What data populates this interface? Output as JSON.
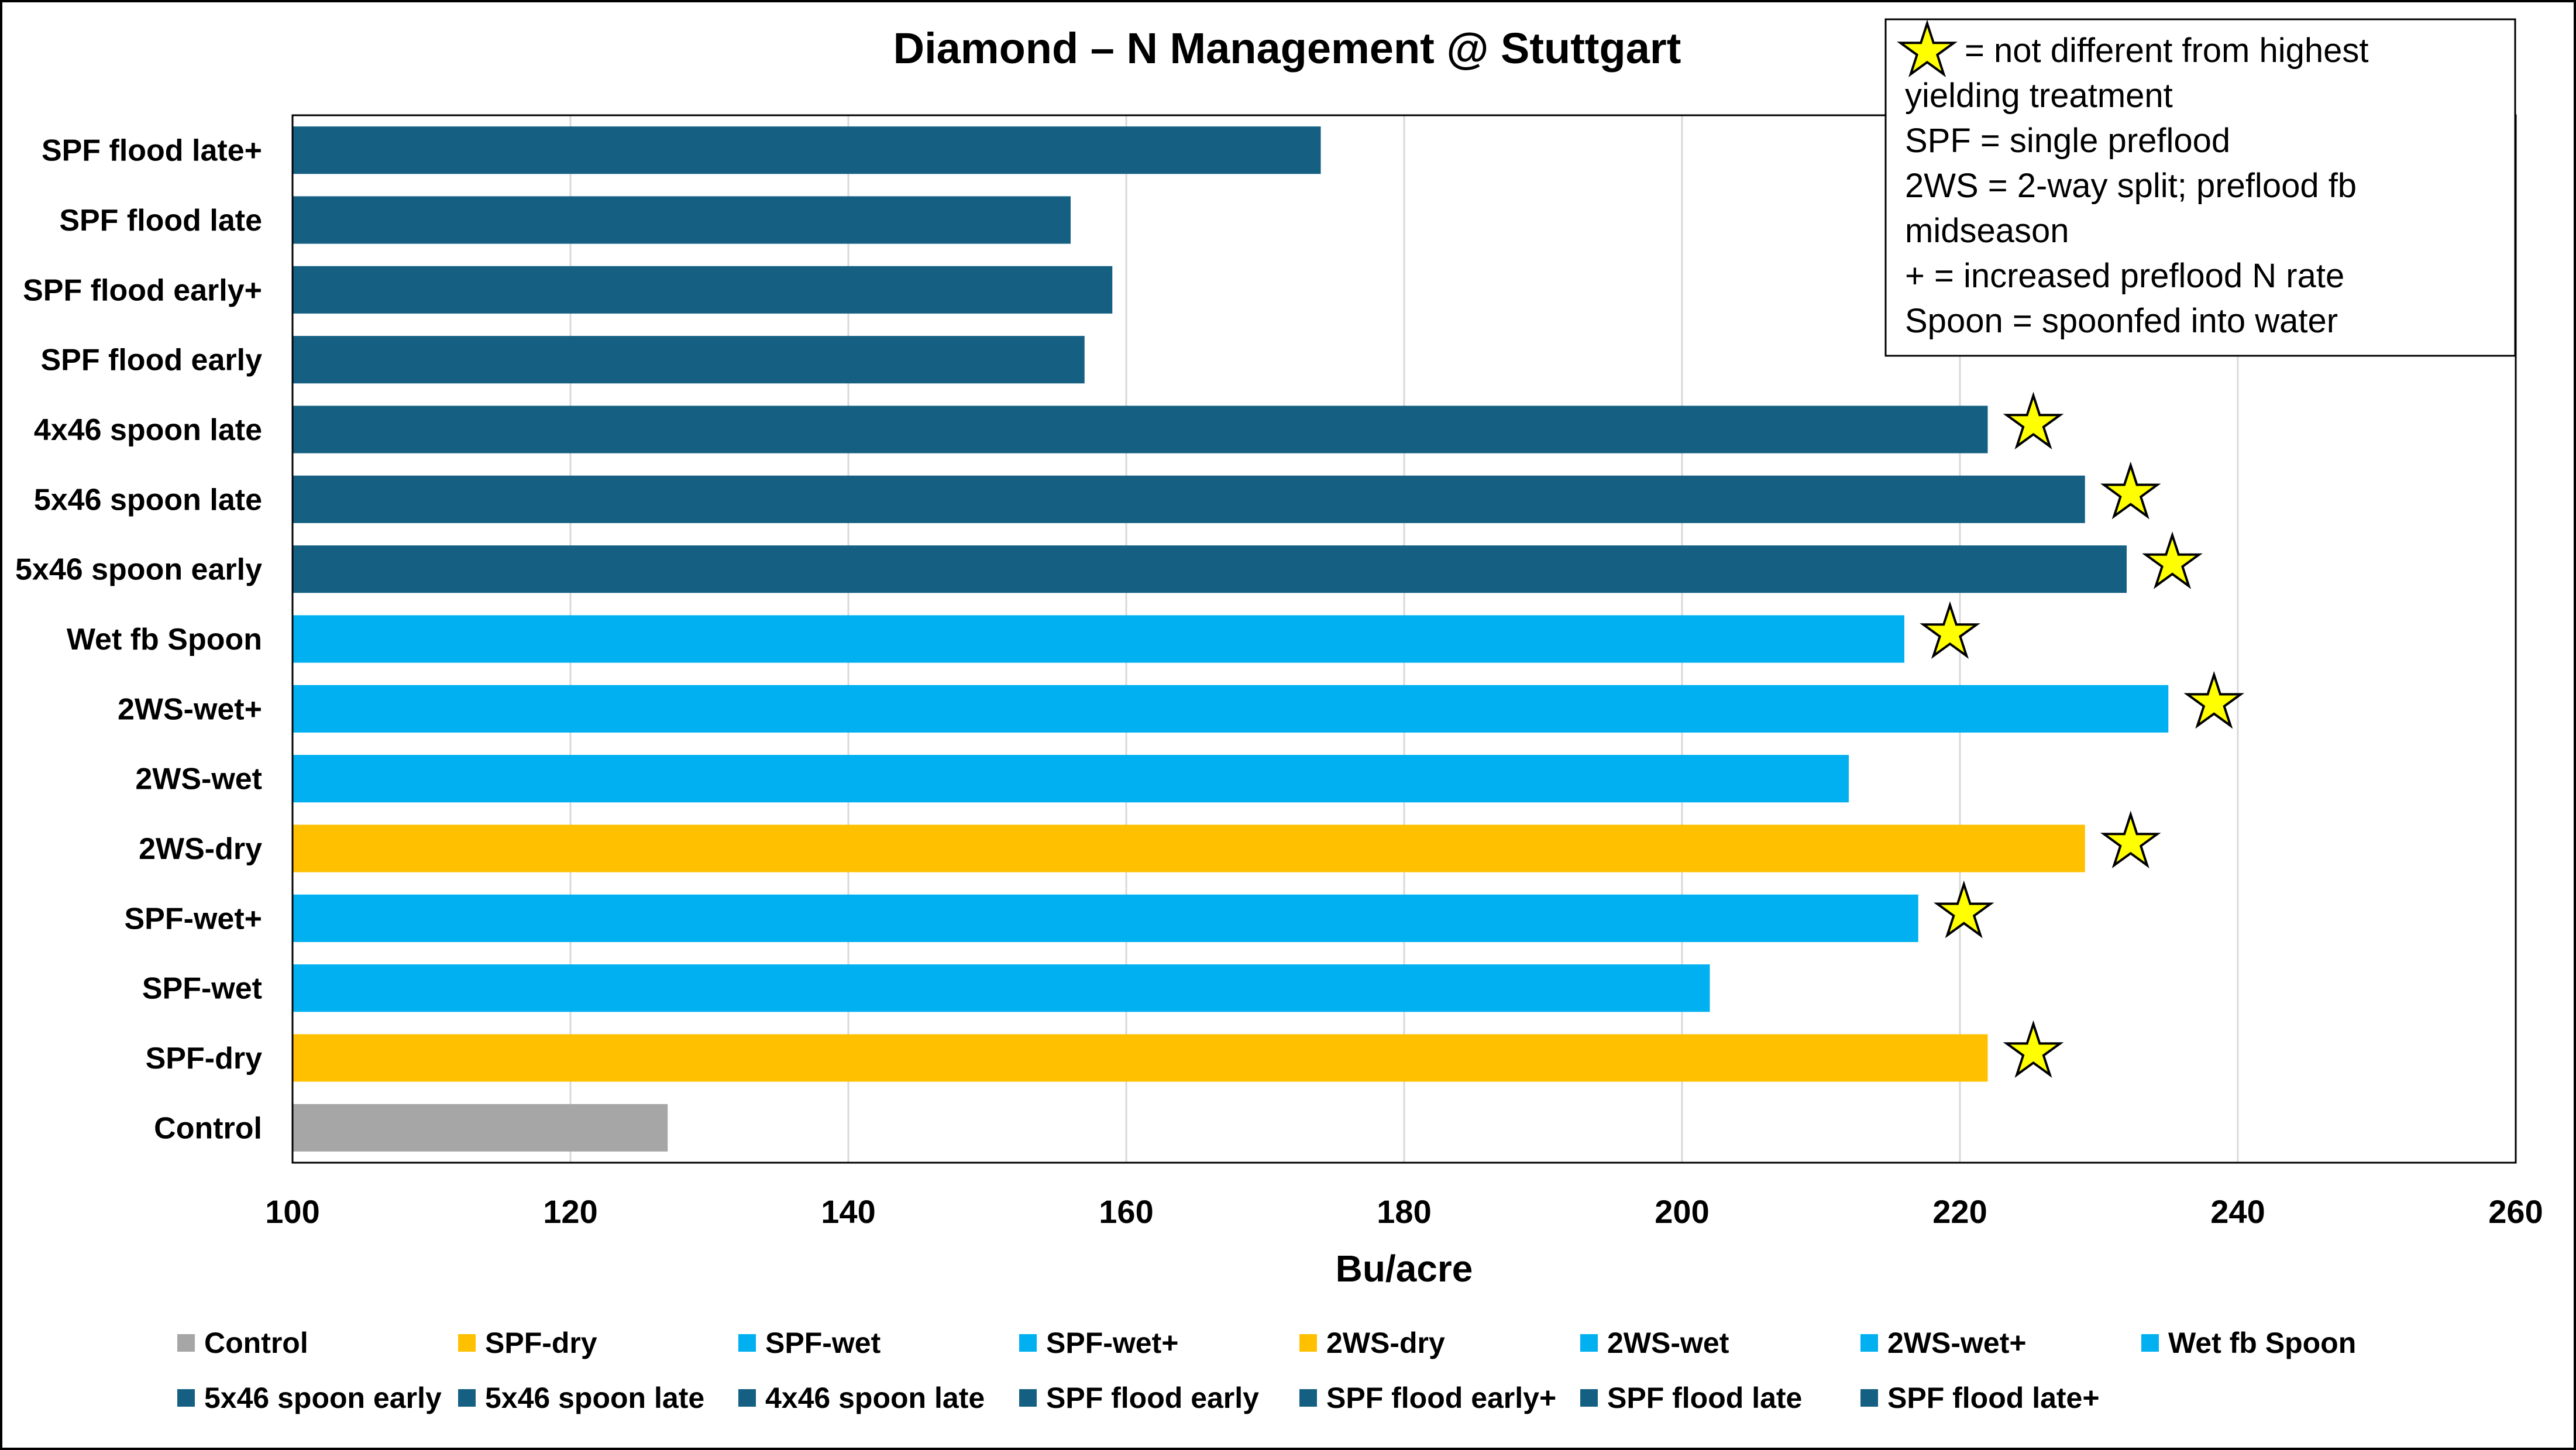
{
  "chart_data": {
    "type": "bar",
    "orientation": "horizontal",
    "title": "Diamond – N Management @ Stuttgart",
    "xlabel": "Bu/acre",
    "ylabel": "",
    "xlim": [
      100,
      260
    ],
    "x_ticks": [
      100,
      120,
      140,
      160,
      180,
      200,
      220,
      240,
      260
    ],
    "grid": "vertical",
    "legend_placement": "bottom",
    "categories": [
      "Control",
      "SPF-dry",
      "SPF-wet",
      "SPF-wet+",
      "2WS-dry",
      "2WS-wet",
      "2WS-wet+",
      "Wet fb Spoon",
      "5x46 spoon early",
      "5x46 spoon late",
      "4x46 spoon late",
      "SPF flood early",
      "SPF flood early+",
      "SPF flood late",
      "SPF flood late+"
    ],
    "values": [
      127,
      222,
      202,
      217,
      229,
      212,
      235,
      216,
      232,
      229,
      222,
      157,
      159,
      156,
      174
    ],
    "colors": [
      "#A6A6A6",
      "#FFC000",
      "#00B0F0",
      "#00B0F0",
      "#FFC000",
      "#00B0F0",
      "#00B0F0",
      "#00B0F0",
      "#156082",
      "#156082",
      "#156082",
      "#156082",
      "#156082",
      "#156082",
      "#156082"
    ],
    "starred": [
      false,
      true,
      false,
      true,
      true,
      false,
      true,
      true,
      true,
      true,
      true,
      false,
      false,
      false,
      false
    ],
    "star_color": "#FFFF00",
    "annotation_lines": [
      "= not different from highest",
      "yielding treatment",
      "SPF = single preflood",
      "2WS = 2-way split; preflood fb",
      "midseason",
      "+ = increased preflood N rate",
      "Spoon = spoonfed into water"
    ]
  }
}
